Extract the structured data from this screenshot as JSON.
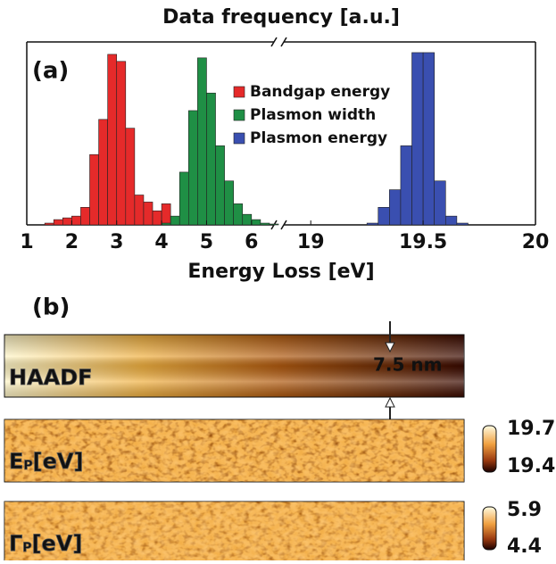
{
  "chart_data": {
    "type": "histogram",
    "title": "Data frequency [a.u.]",
    "panel_label": "(a)",
    "xlabel": "Energy Loss [eV]",
    "xlim": [
      1,
      6.5
    ],
    "xlim2": [
      18.88,
      20
    ],
    "xticks": [
      1,
      2,
      3,
      4,
      5,
      6,
      19,
      19.5,
      20
    ],
    "ylim": [
      0,
      1
    ],
    "axis_break": true,
    "legend": "upper-center",
    "series": [
      {
        "name": "Bandgap energy",
        "color": "#e52a2a",
        "bins": [
          1.4,
          1.6,
          1.8,
          2.0,
          2.2,
          2.4,
          2.6,
          2.8,
          3.0,
          3.2,
          3.4,
          3.6,
          3.8,
          4.0,
          4.2
        ],
        "values": [
          0.01,
          0.03,
          0.04,
          0.05,
          0.1,
          0.4,
          0.6,
          0.97,
          0.93,
          0.55,
          0.17,
          0.13,
          0.08,
          0.12
        ]
      },
      {
        "name": "Plasmon width",
        "color": "#1f8f45",
        "bins": [
          4.0,
          4.2,
          4.4,
          4.6,
          4.8,
          5.0,
          5.2,
          5.4,
          5.6,
          5.8,
          6.0,
          6.2,
          6.4,
          6.6
        ],
        "values": [
          0.01,
          0.05,
          0.3,
          0.65,
          0.95,
          0.75,
          0.45,
          0.25,
          0.12,
          0.06,
          0.03,
          0.01,
          0.005
        ]
      },
      {
        "name": "Plasmon energy",
        "color": "#3a4fb0",
        "bins": [
          19.25,
          19.3,
          19.35,
          19.4,
          19.45,
          19.5,
          19.55,
          19.6,
          19.65,
          19.7
        ],
        "values": [
          0.01,
          0.1,
          0.2,
          0.45,
          0.98,
          0.98,
          0.25,
          0.05,
          0.01
        ]
      }
    ]
  },
  "panel_b": {
    "label": "(b)",
    "haadf": "HAADF",
    "scale": "7.5 nm",
    "ep": {
      "symbol": "E",
      "sub": "P",
      "unit": "[eV]",
      "cbar_max": "19.7",
      "cbar_min": "19.4"
    },
    "gp": {
      "symbol": "Γ",
      "sub": "P",
      "unit": "[eV]",
      "cbar_max": "5.9",
      "cbar_min": "4.4"
    }
  }
}
